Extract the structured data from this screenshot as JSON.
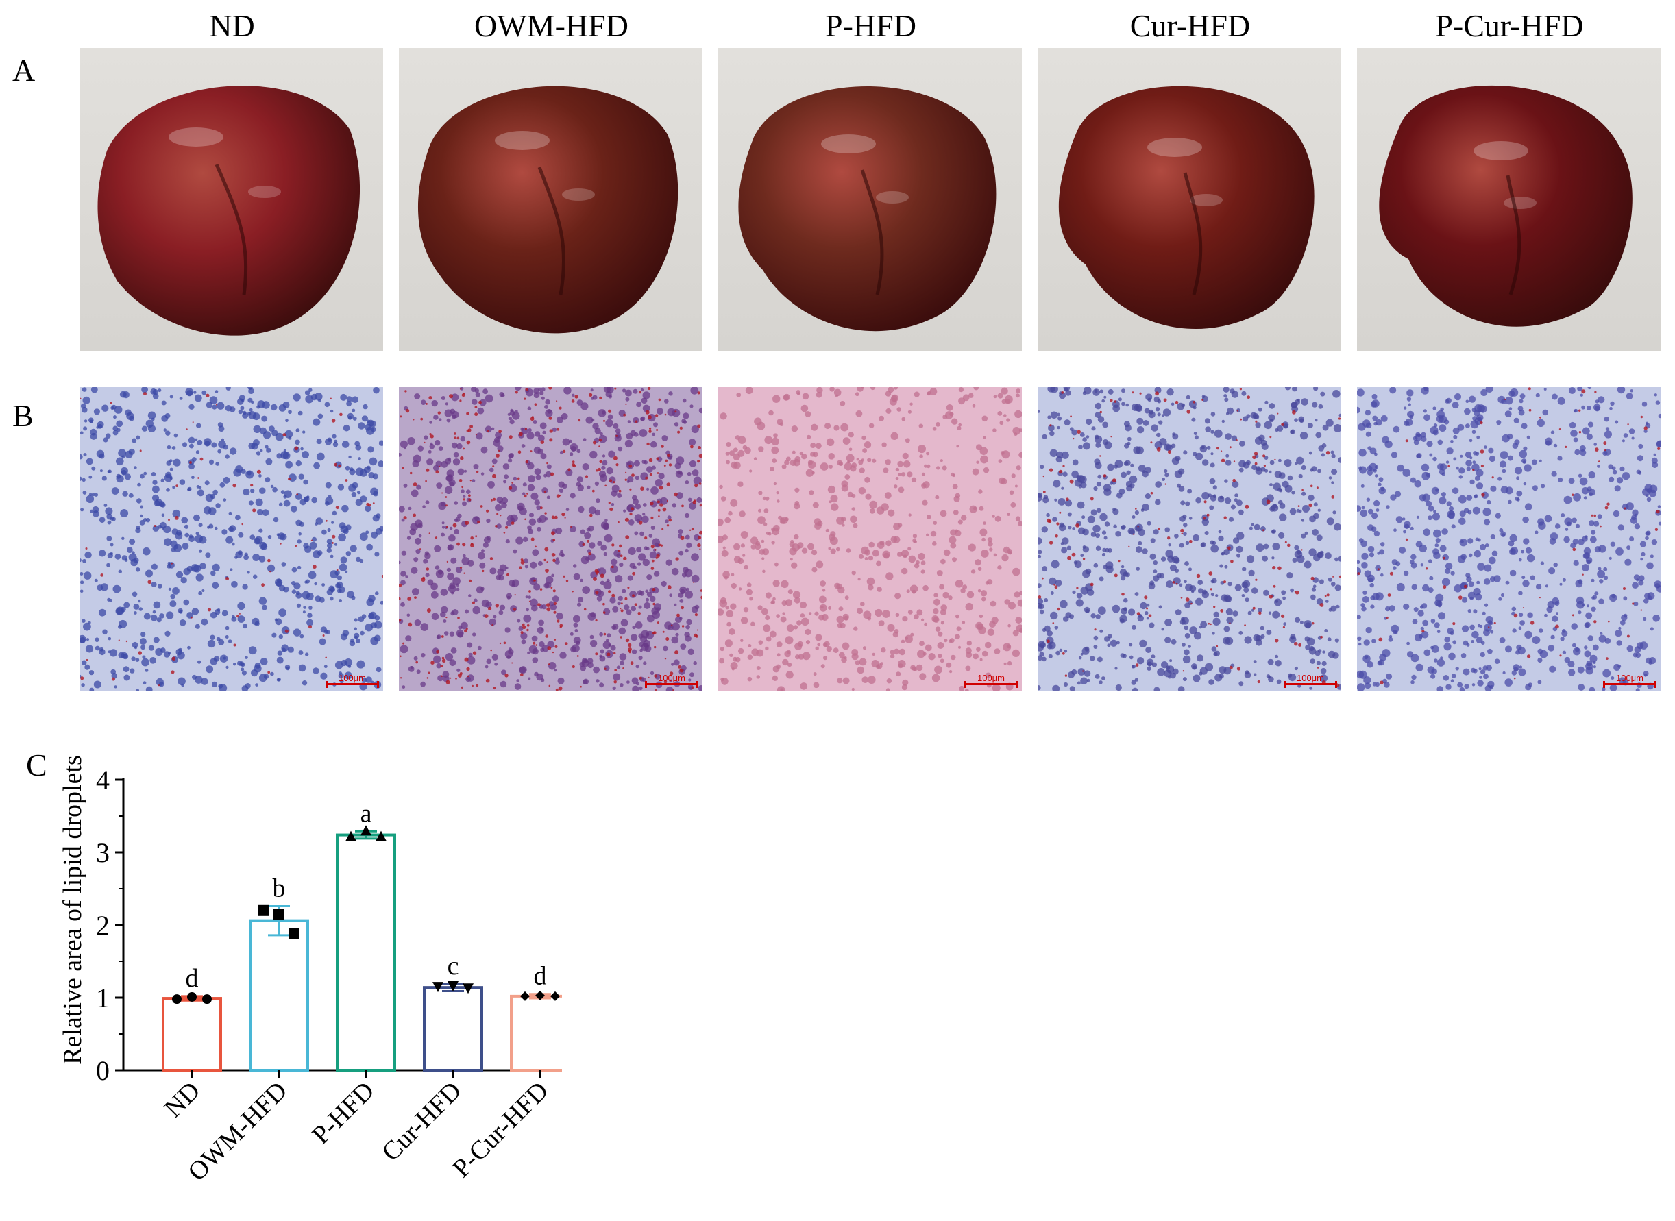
{
  "panels": {
    "a": "A",
    "b": "B",
    "c": "C"
  },
  "groups": [
    {
      "name": "ND",
      "liver_color": "#8a1e24",
      "stain_tint": "#3c4aa6"
    },
    {
      "name": "OWM-HFD",
      "liver_color": "#6a2218",
      "stain_tint": "#6a3a88"
    },
    {
      "name": "P-HFD",
      "liver_color": "#6e2a1e",
      "stain_tint": "#c07090"
    },
    {
      "name": "Cur-HFD",
      "liver_color": "#701c16",
      "stain_tint": "#4a4a9c"
    },
    {
      "name": "P-Cur-HFD",
      "liver_color": "#6a1216",
      "stain_tint": "#4c4ea8"
    }
  ],
  "scale_bar_label": "100μm",
  "chart_data": {
    "type": "bar",
    "categories": [
      "ND",
      "OWM-HFD",
      "P-HFD",
      "Cur-HFD",
      "P-Cur-HFD"
    ],
    "values": [
      0.99,
      2.06,
      3.24,
      1.14,
      1.02
    ],
    "errors": [
      0.03,
      0.2,
      0.05,
      0.05,
      0.03
    ],
    "points": [
      [
        0.98,
        1.01,
        0.98
      ],
      [
        2.2,
        2.15,
        1.88
      ],
      [
        3.22,
        3.3,
        3.22
      ],
      [
        1.15,
        1.16,
        1.13
      ],
      [
        1.02,
        1.03,
        1.02
      ]
    ],
    "markers": [
      "circle",
      "square",
      "triangle-up",
      "triangle-down",
      "diamond"
    ],
    "significance": [
      "d",
      "b",
      "a",
      "c",
      "d"
    ],
    "colors": [
      "#e8553e",
      "#49b7d6",
      "#169f7f",
      "#3e4f8a",
      "#f2a08a"
    ],
    "xlabel": "",
    "ylabel": "Relative area of lipid droplets",
    "ylim": [
      0,
      4
    ],
    "yticks": [
      0,
      1,
      2,
      3,
      4
    ]
  }
}
